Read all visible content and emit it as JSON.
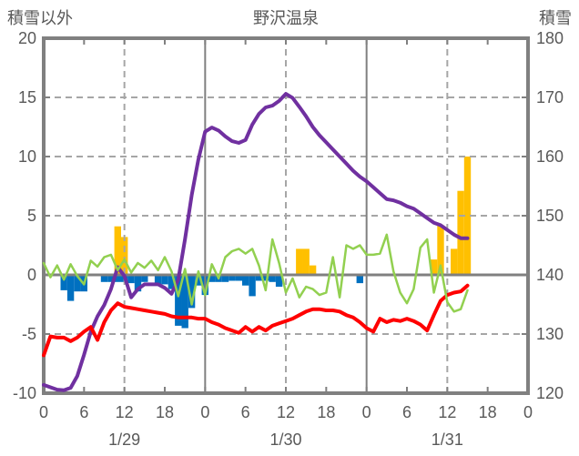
{
  "titles": {
    "left_axis": "積雪以外",
    "chart": "野沢温泉",
    "right_axis": "積雪"
  },
  "colors": {
    "border": "#808080",
    "grid_dashed": "#a6a6a6",
    "zero_line": "#808080",
    "text": "#595959",
    "purple": "#7030a0",
    "red": "#ff0000",
    "green": "#92d050",
    "orange": "#ffc000",
    "blue": "#0070c0",
    "background": "#ffffff"
  },
  "chart_data": {
    "type": "bar+line combo, dual axis",
    "title": "野沢温泉",
    "left_axis": {
      "label": "積雪以外",
      "min": -10,
      "max": 20,
      "ticks": [
        20,
        15,
        10,
        5,
        0,
        -5,
        -10
      ]
    },
    "right_axis": {
      "label": "積雪",
      "min": 120,
      "max": 180,
      "ticks": [
        180,
        170,
        160,
        150,
        140,
        130,
        120
      ]
    },
    "x_axis": {
      "total_hours": 72,
      "tick_step_hours": 6,
      "tick_labels": [
        "0",
        "6",
        "12",
        "18",
        "0",
        "6",
        "12",
        "18",
        "0",
        "6",
        "12",
        "18",
        "0"
      ],
      "date_labels": [
        {
          "text": "1/29",
          "hour": 12
        },
        {
          "text": "1/30",
          "hour": 36
        },
        {
          "text": "1/31",
          "hour": 60
        }
      ],
      "solid_gridline_hours": [
        24,
        48
      ],
      "dashed_gridline_hours": [
        12,
        36,
        60
      ]
    },
    "series": [
      {
        "id": "purple-line",
        "type": "line",
        "axis": "right",
        "color": "#7030a0",
        "width": 4,
        "values": [
          121.4,
          121.0,
          120.6,
          120.5,
          120.9,
          122.9,
          126.5,
          130.4,
          133.0,
          134.9,
          137.6,
          141.3,
          139.8,
          136.2,
          137.6,
          138.4,
          138.4,
          138.4,
          137.8,
          136.8,
          139.2,
          146.0,
          153.5,
          159.5,
          164.2,
          164.9,
          164.4,
          163.4,
          162.6,
          162.3,
          162.8,
          165.4,
          167.2,
          168.3,
          168.6,
          169.4,
          170.6,
          169.9,
          168.4,
          166.8,
          165.0,
          163.6,
          162.4,
          161.2,
          160.0,
          158.8,
          157.6,
          156.6,
          155.8,
          154.8,
          153.8,
          152.8,
          152.6,
          152.2,
          151.6,
          151.2,
          150.4,
          149.6,
          148.8,
          148.4,
          147.6,
          146.8,
          146.2,
          146.2
        ]
      },
      {
        "id": "red-line",
        "type": "line",
        "axis": "left",
        "color": "#ff0000",
        "width": 4,
        "values": [
          -6.8,
          -5.2,
          -5.3,
          -5.3,
          -5.6,
          -5.3,
          -4.8,
          -4.4,
          -5.5,
          -4.0,
          -3.0,
          -2.4,
          -2.7,
          -2.8,
          -2.9,
          -3.0,
          -3.1,
          -3.2,
          -3.3,
          -3.5,
          -3.6,
          -3.6,
          -3.6,
          -3.7,
          -3.7,
          -4.0,
          -4.2,
          -4.5,
          -4.7,
          -4.9,
          -4.4,
          -4.8,
          -4.4,
          -4.7,
          -4.3,
          -4.1,
          -3.9,
          -3.7,
          -3.4,
          -3.1,
          -2.9,
          -2.9,
          -3.0,
          -3.0,
          -3.1,
          -3.4,
          -3.6,
          -4.0,
          -4.5,
          -4.8,
          -3.7,
          -4.0,
          -3.8,
          -3.9,
          -3.7,
          -3.9,
          -4.2,
          -4.7,
          -3.4,
          -2.2,
          -1.7,
          -1.5,
          -1.4,
          -0.9
        ]
      },
      {
        "id": "green-line",
        "type": "line",
        "axis": "left",
        "color": "#92d050",
        "width": 2.5,
        "values": [
          1.0,
          -0.2,
          0.8,
          -0.4,
          0.9,
          -0.1,
          -0.8,
          1.2,
          0.7,
          1.5,
          1.7,
          0.4,
          1.3,
          0.2,
          1.0,
          0.6,
          1.2,
          0.4,
          1.5,
          0.3,
          -1.8,
          0.5,
          -2.5,
          0.3,
          -1.7,
          0.9,
          -0.3,
          1.5,
          2.0,
          2.2,
          1.8,
          2.2,
          0.8,
          -1.3,
          3.0,
          1.0,
          -1.5,
          -0.3,
          -1.9,
          -1.0,
          -1.2,
          -1.7,
          -1.5,
          1.5,
          -1.9,
          2.5,
          2.2,
          2.5,
          1.7,
          1.7,
          1.8,
          3.4,
          0.3,
          -1.5,
          -2.4,
          -1.2,
          2.3,
          3.0,
          -1.5,
          0.8,
          -2.3,
          -3.1,
          -2.9,
          -1.3
        ]
      },
      {
        "id": "orange-bars",
        "type": "bar",
        "axis": "left",
        "color": "#ffc000",
        "values": [
          0,
          0,
          0,
          0,
          0,
          0,
          0,
          0,
          0,
          0,
          0,
          4.1,
          3.2,
          0,
          0,
          0,
          0,
          0,
          0,
          0,
          0,
          0,
          0,
          0,
          0,
          0,
          0,
          0,
          0,
          0,
          0,
          0,
          0,
          0,
          0,
          0,
          0,
          0,
          2.2,
          2.2,
          0.8,
          0,
          0,
          0,
          0,
          0,
          0,
          0,
          0,
          0,
          0,
          0,
          0,
          0,
          0,
          0,
          0,
          0,
          1.3,
          4.2,
          0,
          2.2,
          7.1,
          10.0
        ]
      },
      {
        "id": "blue-bars",
        "type": "bar",
        "axis": "left",
        "color": "#0070c0",
        "values": [
          0,
          0,
          0,
          -1.3,
          -2.2,
          -1.4,
          -1.4,
          0,
          0,
          -0.6,
          -0.6,
          -0.6,
          -0.6,
          -0.7,
          -1.4,
          -0.6,
          0,
          -0.8,
          -0.8,
          -1.2,
          -4.3,
          -4.5,
          -2.8,
          -0.9,
          -1.7,
          -0.6,
          -0.6,
          -0.6,
          -0.5,
          -0.5,
          -0.9,
          -1.8,
          -0.5,
          -0.5,
          -0.6,
          -1.0,
          0,
          0,
          0,
          0,
          0,
          0,
          0,
          0,
          0,
          0,
          0,
          -0.7,
          0,
          0,
          0,
          0,
          0,
          0,
          0,
          0,
          0,
          0,
          0,
          0,
          0,
          0,
          0,
          0
        ]
      }
    ],
    "layout": {
      "grid": "dashed horizontal every 5 left-units, dashed vertical at 12:00, solid vertical at day boundaries, solid zero line",
      "legend": "none"
    }
  }
}
